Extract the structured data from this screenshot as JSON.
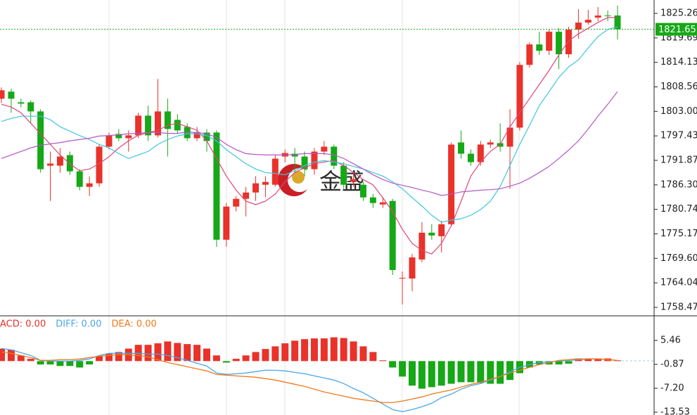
{
  "chart_data": [
    {
      "type": "candlestick",
      "up_color": "#e8322a",
      "down_color": "#16a816",
      "open": [
        1805.87,
        1807.48,
        1805.07,
        1805.07,
        1802.99,
        1790.66,
        1790.66,
        1793.06,
        1789.38,
        1785.85,
        1786.65,
        1794.98,
        1797.87,
        1796.9,
        1797.55,
        1802.03,
        1797.55,
        1802.99,
        1801.07,
        1799.47,
        1796.9,
        1798.19,
        1798.19,
        1773.84,
        1781.37,
        1783.13,
        1784.57,
        1786.33,
        1786.33,
        1792.74,
        1793.38,
        1792.74,
        1789.86,
        1793.86,
        1794.98,
        1790.66,
        1786.97,
        1786.33,
        1783.45,
        1781.85,
        1782.65,
        1765.03,
        1765.03,
        1769.35,
        1775.44,
        1774.64,
        1777.36,
        1795.94,
        1793.38,
        1791.46,
        1795.46,
        1795.78,
        1794.98,
        1799.31,
        1813.56,
        1818.21,
        1816.77,
        1821.09,
        1815.97,
        1821.57,
        1823.17,
        1824.3,
        1824.78,
        1824.78
      ],
      "high": [
        1808.44,
        1808.12,
        1805.87,
        1805.55,
        1803.47,
        1793.86,
        1794.66,
        1793.86,
        1789.86,
        1788.26,
        1795.46,
        1798.19,
        1798.99,
        1798.67,
        1802.67,
        1804.27,
        1810.36,
        1805.87,
        1802.35,
        1800.27,
        1799.47,
        1798.99,
        1798.67,
        1782.17,
        1783.77,
        1785.85,
        1788.26,
        1788.26,
        1793.06,
        1794.34,
        1794.66,
        1793.86,
        1794.66,
        1796.26,
        1795.46,
        1791.46,
        1789.06,
        1786.97,
        1784.25,
        1783.45,
        1783.13,
        1766.63,
        1770.64,
        1777.84,
        1777.36,
        1778.16,
        1795.94,
        1798.67,
        1794.34,
        1796.26,
        1796.58,
        1800.27,
        1803.47,
        1814.2,
        1818.69,
        1821.09,
        1821.57,
        1821.89,
        1822.21,
        1826.22,
        1826.06,
        1826.7,
        1825.9,
        1827.02
      ],
      "low": [
        1804.91,
        1802.67,
        1803.95,
        1800.27,
        1789.06,
        1782.65,
        1789.06,
        1788.58,
        1785.05,
        1783.77,
        1785.85,
        1794.34,
        1796.26,
        1793.86,
        1796.9,
        1796.26,
        1797.06,
        1792.74,
        1797.87,
        1796.26,
        1796.26,
        1793.86,
        1772.24,
        1772.24,
        1780.25,
        1779.13,
        1782.65,
        1783.45,
        1785.85,
        1791.46,
        1789.06,
        1788.26,
        1788.58,
        1793.06,
        1789.86,
        1785.37,
        1785.85,
        1782.65,
        1781.05,
        1781.05,
        1765.83,
        1759.1,
        1762.14,
        1768.71,
        1773.84,
        1770.96,
        1777.04,
        1792.26,
        1790.66,
        1790.66,
        1794.66,
        1793.86,
        1785.37,
        1798.67,
        1812.92,
        1815.81,
        1815.81,
        1812.6,
        1815.17,
        1819.49,
        1822.69,
        1823.49,
        1823.49,
        1819.33
      ],
      "close": [
        1807.8,
        1805.87,
        1804.75,
        1802.99,
        1789.86,
        1791.14,
        1792.74,
        1789.38,
        1785.85,
        1786.65,
        1794.98,
        1797.55,
        1796.9,
        1797.55,
        1802.03,
        1797.55,
        1802.99,
        1798.99,
        1798.67,
        1796.9,
        1798.19,
        1796.26,
        1773.84,
        1781.37,
        1783.13,
        1784.57,
        1786.65,
        1786.97,
        1792.26,
        1793.54,
        1792.74,
        1789.86,
        1793.86,
        1794.98,
        1790.66,
        1786.33,
        1787.61,
        1783.45,
        1782.17,
        1782.33,
        1766.95,
        1765.19,
        1769.83,
        1775.44,
        1774.8,
        1777.36,
        1795.46,
        1793.38,
        1791.46,
        1795.46,
        1795.94,
        1794.98,
        1799.31,
        1813.56,
        1818.21,
        1816.77,
        1821.09,
        1815.97,
        1821.57,
        1823.17,
        1823.81,
        1824.78,
        1824.78,
        1821.65
      ],
      "lines": [
        {
          "color": "#e0457a",
          "values": [
            1804.6,
            1804.0,
            1802.7,
            1800.3,
            1797.9,
            1795.5,
            1793.1,
            1791.1,
            1789.5,
            1789.9,
            1791.1,
            1792.7,
            1794.7,
            1796.3,
            1797.6,
            1798.2,
            1798.7,
            1799.8,
            1800.3,
            1799.5,
            1798.7,
            1796.3,
            1792.3,
            1788.3,
            1785.1,
            1782.6,
            1781.8,
            1782.6,
            1784.2,
            1787.0,
            1789.1,
            1790.2,
            1791.1,
            1791.5,
            1791.8,
            1790.7,
            1789.1,
            1787.5,
            1786.3,
            1783.4,
            1780.2,
            1776.2,
            1773.0,
            1771.4,
            1770.6,
            1773.0,
            1777.0,
            1782.6,
            1788.3,
            1791.5,
            1793.9,
            1795.5,
            1799.5,
            1802.7,
            1805.9,
            1809.1,
            1812.3,
            1815.8,
            1819.0,
            1820.6,
            1821.9,
            1823.2,
            1824.3,
            1824.3
          ]
        },
        {
          "color": "#3ec4e0",
          "values": [
            1800.7,
            1801.4,
            1801.9,
            1801.9,
            1801.9,
            1801.1,
            1799.5,
            1798.5,
            1797.5,
            1796.6,
            1795.5,
            1794.7,
            1793.4,
            1792.3,
            1793.1,
            1793.9,
            1795.5,
            1796.6,
            1797.4,
            1797.9,
            1797.9,
            1797.5,
            1796.3,
            1794.3,
            1792.7,
            1791.1,
            1789.9,
            1789.1,
            1788.9,
            1788.6,
            1789.5,
            1790.7,
            1791.5,
            1791.8,
            1791.5,
            1791.1,
            1790.5,
            1789.9,
            1789.1,
            1788.3,
            1787.0,
            1785.4,
            1783.4,
            1781.5,
            1779.4,
            1777.8,
            1778.3,
            1778.6,
            1779.4,
            1780.7,
            1782.6,
            1785.9,
            1790.7,
            1795.5,
            1799.8,
            1804.3,
            1807.5,
            1810.7,
            1813.1,
            1814.7,
            1817.4,
            1820.0,
            1821.6,
            1822.2
          ]
        },
        {
          "color": "#b556c8",
          "values": [
            1792.3,
            1793.1,
            1793.9,
            1794.7,
            1795.3,
            1795.6,
            1795.9,
            1796.3,
            1796.6,
            1796.9,
            1797.4,
            1797.5,
            1797.7,
            1797.9,
            1798.0,
            1798.2,
            1798.2,
            1798.0,
            1798.0,
            1798.3,
            1798.2,
            1797.9,
            1797.1,
            1795.5,
            1794.3,
            1793.4,
            1793.2,
            1793.1,
            1793.1,
            1793.1,
            1793.2,
            1793.4,
            1793.4,
            1793.4,
            1793.1,
            1792.3,
            1791.1,
            1789.9,
            1788.6,
            1787.5,
            1786.7,
            1786.2,
            1785.7,
            1785.1,
            1784.6,
            1783.9,
            1784.2,
            1784.7,
            1784.9,
            1785.1,
            1785.2,
            1785.4,
            1786.0,
            1786.7,
            1787.8,
            1789.1,
            1790.5,
            1792.3,
            1794.2,
            1796.3,
            1799.0,
            1801.9,
            1804.6,
            1807.5
          ]
        }
      ],
      "ylim": [
        1756.71,
        1828.3
      ],
      "yticks": [
        1825.26,
        1819.69,
        1814.13,
        1808.56,
        {
          "value": 1803.0,
          "label": "1803.00"
        },
        1797.43,
        1791.87,
        {
          "value": 1786.3,
          "label": "1786.30"
        },
        1780.74,
        1775.17,
        {
          "value": 1769.6,
          "label": "1769.60"
        },
        1764.04,
        1758.47
      ],
      "last_price": 1821.65,
      "last_price_color": "#16a816",
      "watermark": "金盛"
    },
    {
      "type": "macd",
      "histogram": {
        "name": "ACD: 0.00",
        "color": "#e8322a",
        "up_color": "#e8322a",
        "down_color": "#16a816",
        "values": [
          3.3,
          3.0,
          1.5,
          0.6,
          -0.9,
          -0.9,
          -1.3,
          -1.3,
          -1.7,
          -0.9,
          1.3,
          1.9,
          2.4,
          3.3,
          4.3,
          4.3,
          4.7,
          5.2,
          4.8,
          4.5,
          4.3,
          3.3,
          1.5,
          -0.4,
          0.6,
          1.5,
          2.4,
          3.2,
          3.9,
          4.7,
          5.4,
          5.8,
          6.0,
          6.0,
          6.3,
          6.1,
          5.2,
          3.9,
          2.4,
          0.2,
          -1.7,
          -4.1,
          -6.5,
          -7.3,
          -6.9,
          -6.5,
          -6.0,
          -5.6,
          -5.6,
          -5.8,
          -6.0,
          -6.0,
          -5.0,
          -3.2,
          -1.7,
          -0.9,
          -0.9,
          -0.9,
          -0.7,
          0.7,
          0.7,
          0.7,
          0.7,
          0.2
        ]
      },
      "series": [
        {
          "name": "DIFF: 0.00",
          "color": "#4aa6e8",
          "values": [
            3.35,
            2.98,
            2.23,
            1.49,
            0.19,
            0,
            0,
            0,
            0.19,
            0.56,
            1.49,
            2.05,
            2.05,
            2.05,
            2.05,
            1.86,
            1.86,
            1.49,
            0.93,
            0.19,
            -0.56,
            -1.3,
            -3.16,
            -3.53,
            -3.35,
            -3.16,
            -2.79,
            -2.42,
            -2.42,
            -2.6,
            -2.98,
            -3.35,
            -3.91,
            -4.46,
            -5.02,
            -5.95,
            -7.25,
            -8.37,
            -9.86,
            -11.35,
            -12.83,
            -13.39,
            -12.83,
            -12.09,
            -11.16,
            -9.67,
            -8.74,
            -7.44,
            -6.51,
            -5.95,
            -5.02,
            -4.09,
            -2.79,
            -1.67,
            -0.93,
            -0.37,
            -0.19,
            0,
            0.19,
            0.37,
            0.56,
            0.56,
            0.37,
            0.19
          ]
        },
        {
          "name": "DEA: 0.00",
          "color": "#f07a1c",
          "values": [
            2.42,
            2.05,
            1.49,
            0.93,
            0.19,
            0.19,
            0.37,
            0.37,
            0.56,
            0.93,
            1.3,
            1.49,
            1.67,
            1.67,
            1.49,
            1.12,
            0.37,
            -0.37,
            -0.93,
            -1.49,
            -2.05,
            -2.6,
            -3.53,
            -3.72,
            -3.91,
            -4.09,
            -4.28,
            -4.65,
            -5.02,
            -5.58,
            -6.14,
            -6.7,
            -7.44,
            -8.18,
            -8.74,
            -9.3,
            -9.86,
            -10.23,
            -10.6,
            -10.97,
            -10.97,
            -10.6,
            -10.04,
            -9.49,
            -8.74,
            -8.18,
            -7.63,
            -6.88,
            -6.14,
            -5.58,
            -4.84,
            -4.09,
            -3.16,
            -2.42,
            -1.67,
            -0.93,
            -0.37,
            0.19,
            0.37,
            0.56,
            0.56,
            0.56,
            0.37,
            0.19
          ]
        }
      ],
      "ylim": [
        -14.27,
        11.79
      ],
      "yticks": [
        5.46,
        -0.87,
        {
          "value": -7.2,
          "label": "-7.20"
        },
        -13.53
      ]
    }
  ]
}
